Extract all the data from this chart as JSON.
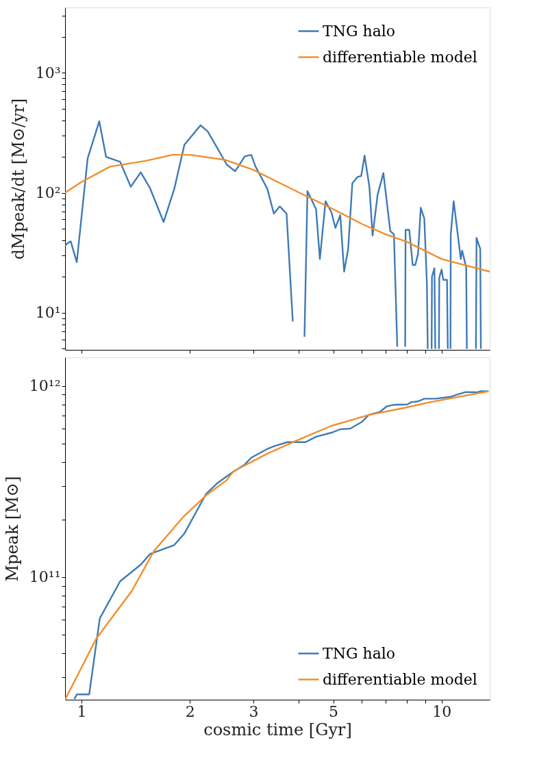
{
  "chart_data": [
    {
      "type": "line",
      "log": "xy",
      "grid": false,
      "legend": "top right",
      "tick_labels": "y",
      "marker": "none",
      "line_style": "solid",
      "ylabel": "dMpeak/dt [M⊙/yr]",
      "xlim": [
        0.9,
        13.6
      ],
      "ylim": [
        4.9,
        3500
      ],
      "xticks": [
        1,
        2,
        3,
        {
          "value": 4,
          "label": null
        },
        5,
        {
          "value": 6,
          "label": null
        },
        {
          "value": 7,
          "label": null
        },
        {
          "value": 8,
          "label": null
        },
        {
          "value": 9,
          "label": null
        },
        10
      ],
      "yticks": [
        {
          "value": 5,
          "label": null
        },
        {
          "value": 6,
          "label": null
        },
        {
          "value": 7,
          "label": null
        },
        {
          "value": 8,
          "label": null
        },
        {
          "value": 9,
          "label": null
        },
        {
          "value": 10,
          "label": "10¹"
        },
        {
          "value": 20,
          "label": null
        },
        {
          "value": 30,
          "label": null
        },
        {
          "value": 40,
          "label": null
        },
        {
          "value": 50,
          "label": null
        },
        {
          "value": 60,
          "label": null
        },
        {
          "value": 70,
          "label": null
        },
        {
          "value": 80,
          "label": null
        },
        {
          "value": 90,
          "label": null
        },
        {
          "value": 100,
          "label": "10²"
        },
        {
          "value": 200,
          "label": null
        },
        {
          "value": 300,
          "label": null
        },
        {
          "value": 400,
          "label": null
        },
        {
          "value": 500,
          "label": null
        },
        {
          "value": 600,
          "label": null
        },
        {
          "value": 700,
          "label": null
        },
        {
          "value": 800,
          "label": null
        },
        {
          "value": 900,
          "label": null
        },
        {
          "value": 1000,
          "label": "10³"
        },
        {
          "value": 2000,
          "label": null
        },
        {
          "value": 3000,
          "label": null
        }
      ],
      "series": [
        {
          "name": "TNG halo",
          "color": "#3f7ab5",
          "x": [
            0.9,
            0.909,
            0.933,
            0.97,
            1.04,
            1.12,
            1.17,
            1.28,
            1.37,
            1.46,
            1.55,
            1.69,
            1.81,
            1.93,
            2.14,
            2.24,
            2.53,
            2.67,
            2.84,
            2.96,
            3.04,
            3.28,
            3.42,
            3.55,
            3.71,
            3.86,
            3.9,
            4.16,
            4.24,
            4.48,
            4.59,
            4.76,
            4.94,
            5.07,
            5.23,
            5.36,
            5.5,
            5.65,
            5.83,
            5.98,
            6.11,
            6.3,
            6.43,
            6.64,
            6.89,
            7.2,
            7.37,
            7.53,
            7.7,
            7.92,
            7.94,
            8.13,
            8.31,
            8.45,
            8.6,
            8.75,
            8.95,
            9.1,
            9.15,
            9.3,
            9.38,
            9.4,
            9.55,
            9.6,
            9.75,
            9.83,
            9.85,
            10.0,
            10.1,
            10.35,
            10.4,
            10.55,
            10.58,
            10.6,
            10.8,
            11.2,
            11.3,
            11.4,
            11.7,
            11.75,
            12.3,
            12.45,
            12.5,
            12.8,
            12.85
          ],
          "values": [
            36,
            37.4,
            39.4,
            26.4,
            194,
            394,
            199,
            181,
            112,
            148,
            109,
            57,
            108,
            251,
            365,
            325,
            172,
            151,
            201,
            207,
            166,
            108,
            67,
            77,
            67,
            8.45,
            null,
            6.3,
            103,
            73,
            28,
            85,
            69,
            51,
            65,
            22,
            34,
            120,
            135,
            138,
            204,
            112,
            44,
            96,
            146,
            48,
            45,
            5.2,
            null,
            5.2,
            49,
            49,
            25,
            25,
            31,
            75,
            61,
            17.7,
            5.0,
            null,
            5.0,
            20,
            23.5,
            5.0,
            null,
            5.0,
            19.6,
            22.9,
            18.8,
            18.8,
            5.0,
            null,
            5.0,
            45,
            85,
            35,
            28,
            33,
            23.8,
            5.0,
            null,
            5.0,
            42,
            34,
            5.0
          ]
        },
        {
          "name": "differentiable model",
          "color": "#f28e2b",
          "x": [
            0.9,
            1.0,
            1.2,
            1.5,
            1.79,
            2.0,
            2.5,
            3.0,
            4.0,
            5.0,
            6.0,
            7.0,
            8.0,
            10.0,
            13.6
          ],
          "values": [
            100,
            123,
            165,
            184,
            207,
            207,
            188,
            155,
            101,
            73,
            55,
            45,
            39,
            28,
            22
          ]
        }
      ]
    },
    {
      "type": "line",
      "log": "xy",
      "grid": false,
      "legend": "bottom right",
      "marker": "none",
      "line_style": "solid",
      "xlabel": "cosmic time [Gyr]",
      "ylabel": "Mpeak [M⊙]",
      "xlim": [
        0.9,
        13.6
      ],
      "ylim": [
        22800000000.0,
        1410000000000.0
      ],
      "xticks": [
        1,
        2,
        3,
        {
          "value": 4,
          "label": null
        },
        5,
        {
          "value": 6,
          "label": null
        },
        {
          "value": 7,
          "label": null
        },
        {
          "value": 8,
          "label": null
        },
        {
          "value": 9,
          "label": null
        },
        10
      ],
      "yticks": [
        {
          "value": 30000000000.0,
          "label": null
        },
        {
          "value": 40000000000.0,
          "label": null
        },
        {
          "value": 50000000000.0,
          "label": null
        },
        {
          "value": 60000000000.0,
          "label": null
        },
        {
          "value": 70000000000.0,
          "label": null
        },
        {
          "value": 80000000000.0,
          "label": null
        },
        {
          "value": 90000000000.0,
          "label": null
        },
        {
          "value": 100000000000.0,
          "label": "10¹¹"
        },
        {
          "value": 200000000000.0,
          "label": null
        },
        {
          "value": 300000000000.0,
          "label": null
        },
        {
          "value": 400000000000.0,
          "label": null
        },
        {
          "value": 500000000000.0,
          "label": null
        },
        {
          "value": 600000000000.0,
          "label": null
        },
        {
          "value": 700000000000.0,
          "label": null
        },
        {
          "value": 800000000000.0,
          "label": null
        },
        {
          "value": 900000000000.0,
          "label": null
        },
        {
          "value": 1000000000000.0,
          "label": "10¹²"
        }
      ],
      "series": [
        {
          "name": "TNG halo",
          "color": "#3f7ab5",
          "x": [
            0.955,
            0.97,
            1.05,
            1.124,
            1.28,
            1.46,
            1.55,
            1.81,
            1.93,
            2.22,
            2.39,
            2.6,
            2.84,
            2.96,
            3.28,
            3.42,
            3.73,
            4.19,
            4.48,
            4.94,
            5.23,
            5.58,
            6.01,
            6.27,
            6.75,
            7.05,
            7.37,
            8.03,
            8.24,
            8.6,
            8.95,
            9.6,
            10.6,
            11.0,
            11.67,
            12.6,
            12.8,
            13.5
          ],
          "values": [
            23000000000.0,
            24300000000.0,
            24300000000.0,
            60800000000.0,
            95000000000.0,
            116000000000.0,
            132000000000.0,
            147000000000.0,
            169000000000.0,
            273000000000.0,
            311000000000.0,
            349000000000.0,
            388000000000.0,
            421000000000.0,
            468000000000.0,
            483000000000.0,
            508000000000.0,
            508000000000.0,
            542000000000.0,
            569000000000.0,
            593000000000.0,
            598000000000.0,
            649000000000.0,
            704000000000.0,
            733000000000.0,
            783000000000.0,
            796000000000.0,
            800000000000.0,
            822000000000.0,
            830000000000.0,
            857000000000.0,
            857000000000.0,
            877000000000.0,
            899000000000.0,
            929000000000.0,
            926000000000.0,
            937000000000.0,
            937000000000.0
          ]
        },
        {
          "name": "differentiable model",
          "color": "#f28e2b",
          "x": [
            0.9,
            1.098,
            1.378,
            1.59,
            1.92,
            2.22,
            2.53,
            2.64,
            3.28,
            3.9,
            4.94,
            6.27,
            7.8,
            9.3,
            13.5
          ],
          "values": [
            22800000000.0,
            47500000000.0,
            84300000000.0,
            137000000000.0,
            207000000000.0,
            268000000000.0,
            321000000000.0,
            357000000000.0,
            442000000000.0,
            512000000000.0,
            618000000000.0,
            704000000000.0,
            764000000000.0,
            822000000000.0,
            937000000000.0
          ]
        }
      ]
    }
  ]
}
